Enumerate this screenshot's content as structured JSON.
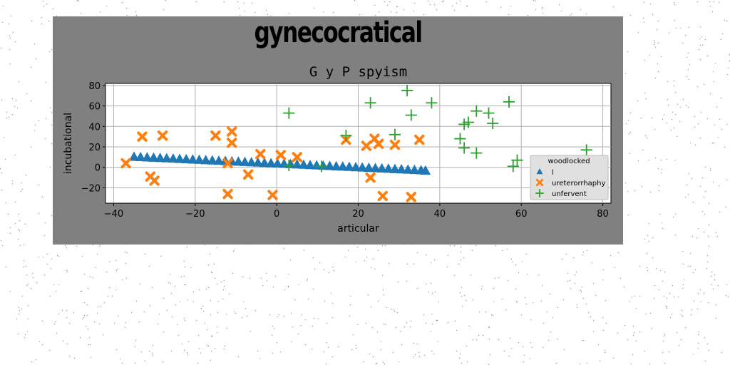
{
  "figure": {
    "suptitle": "gynecocratical",
    "background_color": "#808080"
  },
  "chart_data": {
    "type": "scatter",
    "title": "G y P spyism",
    "xlabel": "articular",
    "ylabel": "incubational",
    "xlim": [
      -42,
      82
    ],
    "ylim": [
      -35,
      82
    ],
    "xticks": [
      -40,
      -20,
      0,
      20,
      40,
      60,
      80
    ],
    "yticks": [
      -20,
      0,
      20,
      40,
      60,
      80
    ],
    "grid": true,
    "legend": {
      "title": "woodlocked",
      "placement": "lower-right"
    },
    "series": [
      {
        "name": "l",
        "marker": "triangle",
        "color": "#1f77b4",
        "x": [
          -35,
          -33.4,
          -31.8,
          -30.2,
          -28.6,
          -27,
          -25.4,
          -23.8,
          -22.2,
          -20.6,
          -19,
          -17.4,
          -15.8,
          -14.2,
          -12.6,
          -11,
          -9.4,
          -7.8,
          -6.2,
          -4.6,
          -3,
          -1.4,
          0.2,
          1.8,
          3.4,
          5,
          6.6,
          8.2,
          9.8,
          11.4,
          13,
          14.6,
          16.2,
          17.8,
          19.4,
          21,
          22.6,
          24.2,
          25.8,
          27.4,
          29,
          30.6,
          32.2,
          33.8,
          35.4,
          36.5
        ],
        "y": [
          10,
          9.7,
          9.4,
          9.1,
          8.8,
          8.5,
          8.2,
          7.9,
          7.6,
          7.3,
          7,
          6.7,
          6.4,
          6.1,
          5.8,
          5.5,
          5.2,
          4.9,
          4.6,
          4.3,
          4,
          3.7,
          3.4,
          3.1,
          2.8,
          2.5,
          2.2,
          1.9,
          1.6,
          1.3,
          1,
          0.7,
          0.4,
          0.1,
          -0.2,
          -0.5,
          -0.8,
          -1.1,
          -1.4,
          -1.7,
          -2,
          -2.3,
          -2.6,
          -2.9,
          -3.2,
          -3.5
        ]
      },
      {
        "name": "ureterorrhaphy",
        "marker": "x-filled",
        "color": "#ff7f0e",
        "x": [
          -37,
          -33,
          -31,
          -30,
          -28,
          -15,
          -12,
          -11,
          -11,
          -12,
          -7,
          -4,
          -1,
          1,
          5,
          17,
          22,
          23,
          24,
          25,
          26,
          29,
          33,
          35
        ],
        "y": [
          4,
          30,
          -9,
          -13,
          31,
          31,
          -26,
          35,
          24,
          4,
          -7,
          13,
          -27,
          12,
          10,
          27,
          21,
          -10,
          28,
          23,
          -28,
          22,
          -29,
          27
        ]
      },
      {
        "name": "unfervent",
        "marker": "plus",
        "color": "#2ca02c",
        "x": [
          3,
          3,
          11,
          17,
          23,
          29,
          32,
          33,
          38,
          45,
          46,
          46,
          47,
          49,
          49,
          52,
          53,
          57,
          58,
          59,
          76
        ],
        "y": [
          53,
          2,
          1,
          31,
          63,
          32,
          75,
          51,
          63,
          28,
          42,
          19,
          44,
          14,
          55,
          53,
          43,
          64,
          1,
          7,
          17
        ]
      }
    ]
  }
}
